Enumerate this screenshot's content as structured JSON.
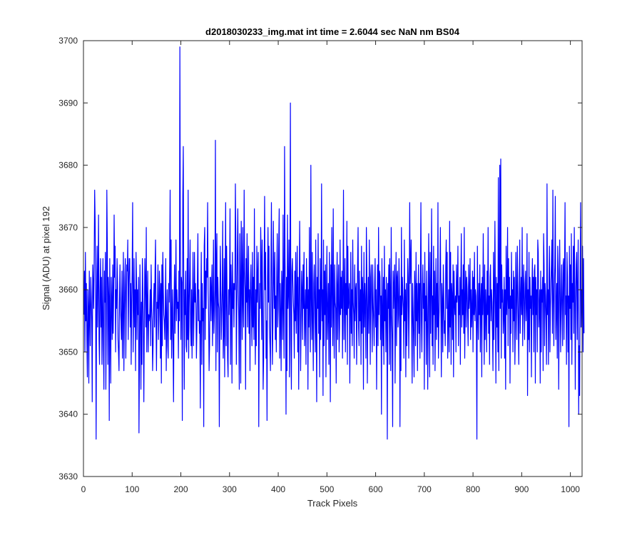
{
  "chart_data": {
    "type": "line",
    "title": "d2018030233_img.mat int time = 2.6044 sec  NaN nm BS04",
    "xlabel": "Track Pixels",
    "ylabel": "Signal (ADU) at pixel 192",
    "xlim": [
      0,
      1024
    ],
    "ylim": [
      3630,
      3700
    ],
    "xticks": [
      0,
      100,
      200,
      300,
      400,
      500,
      600,
      700,
      800,
      900,
      1000
    ],
    "yticks": [
      3630,
      3640,
      3650,
      3660,
      3670,
      3680,
      3690,
      3700
    ],
    "grid": false,
    "series": [
      {
        "color": "#0000ff",
        "x_start": 1,
        "x_step": 1,
        "values": [
          3656,
          3663,
          3650,
          3666,
          3655,
          3661,
          3652,
          3646,
          3660,
          3657,
          3645,
          3663,
          3656,
          3651,
          3662,
          3659,
          3655,
          3642,
          3664,
          3661,
          3657,
          3665,
          3676,
          3671,
          3658,
          3636,
          3659,
          3667,
          3654,
          3662,
          3672,
          3652,
          3648,
          3660,
          3665,
          3654,
          3662,
          3648,
          3656,
          3665,
          3651,
          3644,
          3663,
          3658,
          3666,
          3644,
          3655,
          3676,
          3667,
          3648,
          3662,
          3659,
          3639,
          3665,
          3654,
          3645,
          3662,
          3658,
          3652,
          3664,
          3653,
          3659,
          3672,
          3662,
          3667,
          3650,
          3660,
          3657,
          3665,
          3661,
          3652,
          3650,
          3647,
          3658,
          3664,
          3657,
          3655,
          3652,
          3663,
          3649,
          3658,
          3666,
          3647,
          3656,
          3662,
          3665,
          3649,
          3657,
          3664,
          3663,
          3668,
          3652,
          3661,
          3665,
          3665,
          3654,
          3661,
          3648,
          3658,
          3663,
          3674,
          3650,
          3657,
          3665,
          3654,
          3660,
          3647,
          3666,
          3661,
          3652,
          3660,
          3656,
          3662,
          3637,
          3649,
          3664,
          3656,
          3644,
          3658,
          3648,
          3665,
          3660,
          3653,
          3642,
          3655,
          3665,
          3661,
          3654,
          3670,
          3650,
          3657,
          3663,
          3650,
          3656,
          3655,
          3656,
          3660,
          3651,
          3664,
          3657,
          3655,
          3647,
          3651,
          3658,
          3661,
          3654,
          3663,
          3668,
          3655,
          3647,
          3658,
          3657,
          3664,
          3652,
          3656,
          3663,
          3660,
          3649,
          3661,
          3645,
          3664,
          3651,
          3666,
          3660,
          3656,
          3655,
          3652,
          3657,
          3665,
          3647,
          3655,
          3660,
          3651,
          3649,
          3661,
          3658,
          3664,
          3676,
          3652,
          3668,
          3649,
          3655,
          3660,
          3651,
          3642,
          3657,
          3664,
          3653,
          3659,
          3668,
          3655,
          3660,
          3657,
          3658,
          3649,
          3663,
          3655,
          3699,
          3667,
          3652,
          3662,
          3661,
          3639,
          3675,
          3683,
          3659,
          3644,
          3660,
          3656,
          3663,
          3651,
          3650,
          3665,
          3652,
          3676,
          3649,
          3657,
          3662,
          3668,
          3654,
          3651,
          3660,
          3649,
          3658,
          3666,
          3651,
          3656,
          3666,
          3658,
          3661,
          3657,
          3649,
          3654,
          3662,
          3669,
          3655,
          3660,
          3653,
          3655,
          3641,
          3658,
          3666,
          3648,
          3661,
          3655,
          3657,
          3638,
          3667,
          3670,
          3652,
          3663,
          3657,
          3665,
          3662,
          3674,
          3660,
          3656,
          3647,
          3651,
          3662,
          3662,
          3655,
          3660,
          3664,
          3651,
          3657,
          3668,
          3653,
          3656,
          3660,
          3684,
          3647,
          3664,
          3669,
          3650,
          3662,
          3658,
          3657,
          3638,
          3655,
          3667,
          3661,
          3652,
          3656,
          3660,
          3671,
          3649,
          3653,
          3665,
          3646,
          3662,
          3674,
          3651,
          3667,
          3659,
          3649,
          3646,
          3660,
          3656,
          3661,
          3673,
          3648,
          3664,
          3659,
          3645,
          3666,
          3657,
          3661,
          3654,
          3661,
          3660,
          3677,
          3667,
          3648,
          3657,
          3666,
          3673,
          3660,
          3655,
          3644,
          3669,
          3661,
          3645,
          3671,
          3663,
          3652,
          3670,
          3658,
          3654,
          3676,
          3663,
          3660,
          3644,
          3665,
          3658,
          3669,
          3654,
          3660,
          3667,
          3653,
          3660,
          3647,
          3661,
          3664,
          3657,
          3651,
          3666,
          3654,
          3662,
          3652,
          3673,
          3656,
          3648,
          3660,
          3651,
          3667,
          3658,
          3662,
          3666,
          3638,
          3654,
          3661,
          3657,
          3670,
          3665,
          3652,
          3668,
          3657,
          3644,
          3649,
          3662,
          3675,
          3660,
          3666,
          3649,
          3655,
          3639,
          3662,
          3670,
          3658,
          3667,
          3654,
          3651,
          3647,
          3663,
          3674,
          3660,
          3648,
          3654,
          3671,
          3662,
          3657,
          3666,
          3652,
          3659,
          3650,
          3663,
          3669,
          3654,
          3657,
          3667,
          3673,
          3649,
          3661,
          3656,
          3647,
          3663,
          3660,
          3652,
          3672,
          3657,
          3649,
          3683,
          3665,
          3658,
          3640,
          3662,
          3647,
          3672,
          3657,
          3660,
          3668,
          3646,
          3662,
          3690,
          3652,
          3644,
          3663,
          3665,
          3661,
          3658,
          3656,
          3649,
          3663,
          3655,
          3666,
          3653,
          3659,
          3667,
          3650,
          3662,
          3644,
          3657,
          3671,
          3661,
          3647,
          3655,
          3663,
          3660,
          3652,
          3664,
          3657,
          3666,
          3651,
          3656,
          3660,
          3648,
          3665,
          3657,
          3662,
          3644,
          3660,
          3654,
          3670,
          3656,
          3650,
          3680,
          3659,
          3652,
          3666,
          3655,
          3647,
          3661,
          3664,
          3657,
          3650,
          3668,
          3656,
          3642,
          3662,
          3657,
          3669,
          3653,
          3660,
          3646,
          3665,
          3652,
          3658,
          3677,
          3655,
          3660,
          3643,
          3668,
          3651,
          3663,
          3656,
          3664,
          3646,
          3659,
          3667,
          3652,
          3656,
          3661,
          3648,
          3666,
          3659,
          3642,
          3664,
          3654,
          3670,
          3660,
          3651,
          3673,
          3656,
          3649,
          3664,
          3658,
          3657,
          3645,
          3661,
          3666,
          3652,
          3660,
          3664,
          3650,
          3654,
          3668,
          3656,
          3662,
          3657,
          3663,
          3649,
          3660,
          3676,
          3652,
          3658,
          3665,
          3650,
          3661,
          3656,
          3671,
          3648,
          3667,
          3657,
          3659,
          3661,
          3645,
          3656,
          3666,
          3653,
          3660,
          3651,
          3668,
          3658,
          3656,
          3649,
          3664,
          3655,
          3660,
          3661,
          3648,
          3657,
          3664,
          3670,
          3654,
          3651,
          3663,
          3655,
          3660,
          3648,
          3667,
          3653,
          3662,
          3659,
          3644,
          3666,
          3654,
          3661,
          3657,
          3649,
          3670,
          3663,
          3645,
          3656,
          3662,
          3653,
          3668,
          3659,
          3648,
          3662,
          3664,
          3657,
          3650,
          3664,
          3658,
          3655,
          3651,
          3661,
          3665,
          3654,
          3660,
          3644,
          3657,
          3664,
          3651,
          3670,
          3656,
          3663,
          3662,
          3652,
          3659,
          3640,
          3665,
          3656,
          3651,
          3662,
          3648,
          3667,
          3655,
          3660,
          3650,
          3662,
          3658,
          3636,
          3661,
          3657,
          3664,
          3648,
          3665,
          3659,
          3647,
          3670,
          3656,
          3652,
          3638,
          3663,
          3657,
          3661,
          3664,
          3645,
          3658,
          3666,
          3651,
          3662,
          3663,
          3654,
          3656,
          3665,
          3660,
          3638,
          3659,
          3647,
          3670,
          3656,
          3662,
          3659,
          3657,
          3649,
          3668,
          3655,
          3660,
          3646,
          3661,
          3651,
          3657,
          3665,
          3662,
          3649,
          3657,
          3674,
          3661,
          3664,
          3668,
          3655,
          3645,
          3661,
          3657,
          3652,
          3646,
          3663,
          3660,
          3651,
          3666,
          3655,
          3661,
          3647,
          3658,
          3664,
          3653,
          3661,
          3649,
          3662,
          3674,
          3655,
          3650,
          3659,
          3664,
          3657,
          3661,
          3644,
          3666,
          3655,
          3659,
          3648,
          3663,
          3657,
          3644,
          3654,
          3669,
          3660,
          3646,
          3666,
          3653,
          3660,
          3673,
          3651,
          3659,
          3648,
          3667,
          3656,
          3663,
          3647,
          3658,
          3665,
          3652,
          3661,
          3654,
          3674,
          3649,
          3655,
          3658,
          3662,
          3670,
          3657,
          3646,
          3661,
          3658,
          3650,
          3664,
          3659,
          3653,
          3655,
          3651,
          3664,
          3668,
          3657,
          3666,
          3649,
          3655,
          3660,
          3650,
          3671,
          3654,
          3666,
          3648,
          3661,
          3659,
          3652,
          3664,
          3646,
          3663,
          3658,
          3656,
          3659,
          3650,
          3664,
          3658,
          3660,
          3667,
          3651,
          3659,
          3656,
          3662,
          3648,
          3661,
          3669,
          3654,
          3660,
          3656,
          3664,
          3653,
          3670,
          3649,
          3658,
          3663,
          3654,
          3662,
          3660,
          3656,
          3651,
          3664,
          3657,
          3659,
          3665,
          3652,
          3660,
          3654,
          3657,
          3663,
          3650,
          3662,
          3656,
          3666,
          3655,
          3660,
          3659,
          3653,
          3636,
          3667,
          3657,
          3652,
          3661,
          3656,
          3664,
          3650,
          3658,
          3661,
          3646,
          3662,
          3656,
          3669,
          3658,
          3648,
          3664,
          3652,
          3660,
          3657,
          3650,
          3663,
          3656,
          3670,
          3653,
          3659,
          3648,
          3662,
          3664,
          3655,
          3660,
          3658,
          3653,
          3647,
          3666,
          3652,
          3659,
          3671,
          3658,
          3645,
          3662,
          3654,
          3661,
          3650,
          3678,
          3647,
          3661,
          3680,
          3657,
          3681,
          3649,
          3664,
          3658,
          3660,
          3653,
          3656,
          3662,
          3649,
          3660,
          3644,
          3667,
          3656,
          3659,
          3670,
          3651,
          3665,
          3657,
          3662,
          3645,
          3659,
          3653,
          3666,
          3657,
          3660,
          3650,
          3663,
          3655,
          3662,
          3648,
          3654,
          3666,
          3659,
          3652,
          3667,
          3661,
          3655,
          3648,
          3660,
          3668,
          3653,
          3658,
          3662,
          3656,
          3670,
          3651,
          3659,
          3664,
          3657,
          3652,
          3661,
          3663,
          3655,
          3658,
          3669,
          3643,
          3660,
          3652,
          3666,
          3650,
          3662,
          3657,
          3659,
          3646,
          3660,
          3665,
          3656,
          3662,
          3650,
          3663,
          3664,
          3645,
          3662,
          3656,
          3660,
          3650,
          3668,
          3666,
          3654,
          3657,
          3660,
          3645,
          3663,
          3650,
          3660,
          3658,
          3662,
          3647,
          3669,
          3664,
          3651,
          3661,
          3659,
          3655,
          3648,
          3677,
          3656,
          3660,
          3648,
          3662,
          3667,
          3650,
          3657,
          3661,
          3664,
          3668,
          3653,
          3676,
          3659,
          3651,
          3660,
          3664,
          3675,
          3652,
          3657,
          3661,
          3649,
          3667,
          3663,
          3644,
          3656,
          3668,
          3660,
          3650,
          3658,
          3664,
          3657,
          3651,
          3664,
          3665,
          3652,
          3663,
          3674,
          3656,
          3659,
          3648,
          3666,
          3662,
          3650,
          3659,
          3638,
          3667,
          3657,
          3664,
          3652,
          3669,
          3648,
          3661,
          3658,
          3667,
          3653,
          3670,
          3661,
          3644,
          3658,
          3664,
          3666,
          3652,
          3660,
          3668,
          3640,
          3651,
          3643,
          3663,
          3674,
          3654,
          3660,
          3658,
          3667,
          3650,
          3665,
          3653
        ]
      }
    ]
  }
}
